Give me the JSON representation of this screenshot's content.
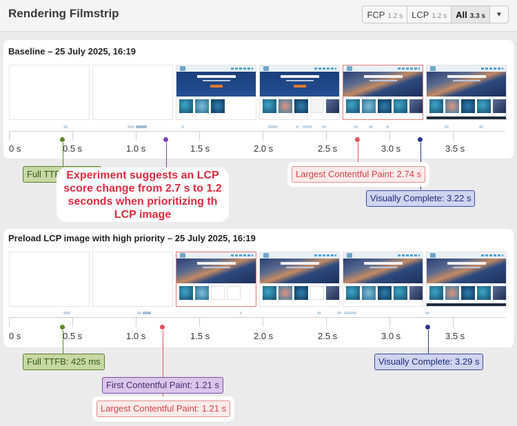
{
  "header": {
    "title": "Rendering Filmstrip",
    "filters": [
      {
        "label": "FCP",
        "value": "1.2 s"
      },
      {
        "label": "LCP",
        "value": "1.2 s"
      },
      {
        "label": "All",
        "value": "3.3 s"
      }
    ],
    "dropdown_icon": "chevron-down-icon"
  },
  "tick_labels": [
    "0 s",
    "0.5 s",
    "1.0 s",
    "1.5 s",
    "2.0 s",
    "2.5 s",
    "3.0 s",
    "3.5 s"
  ],
  "baseline": {
    "title": "Baseline – 25 July 2025, 16:19",
    "frames": [
      "blank",
      "blank",
      "hero-blue-partial",
      "hero-blue-full",
      "hero-art-lcp",
      "hero-art-full"
    ],
    "metrics": {
      "ttfb": "Full TTFB",
      "lcp": "Largest Contentful Paint: 2.74 s",
      "visually_complete": "Visually Complete: 3.22 s"
    }
  },
  "callout": {
    "text": "Experiment suggests an LCP score change from 2.7 s to 1.2 seconds when prioritizing th LCP image"
  },
  "preload": {
    "title": "Preload LCP image with high priority – 25 July 2025, 16:19",
    "frames": [
      "blank",
      "blank",
      "hero-art-lcp-partial",
      "hero-art",
      "hero-art",
      "hero-art-full"
    ],
    "metrics": {
      "ttfb": "Full TTFB: 425 ms",
      "visually_complete": "Visually Complete: 3.29 s",
      "fcp": "First Contentful Paint: 1.21 s",
      "lcp": "Largest Contentful Paint: 1.21 s"
    }
  },
  "colors": {
    "ttfb": "#5a8a1e",
    "fcp": "#7b3fb0",
    "lcp": "#e0525c",
    "visually_complete": "#2a3391"
  }
}
